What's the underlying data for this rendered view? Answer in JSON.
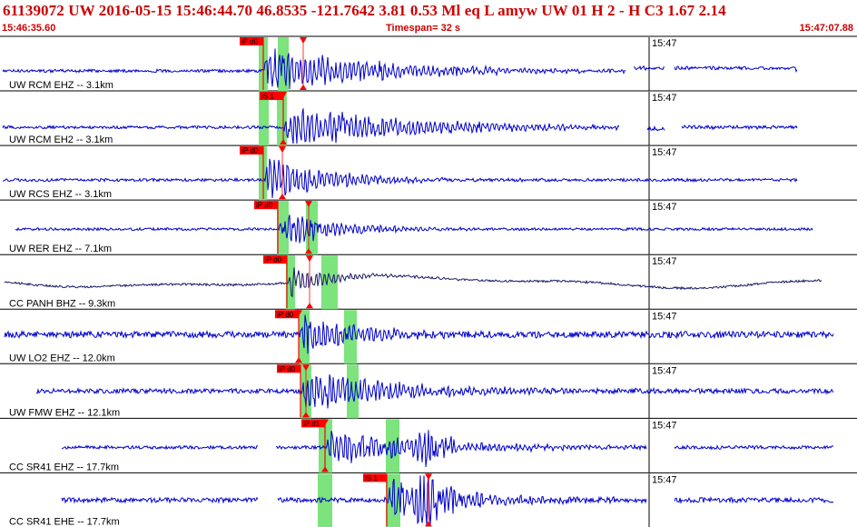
{
  "header": {
    "title": "61139072 UW 2016-05-15 15:46:44.70   46.8535 -121.7642   3.81  0.53 Ml  eq  L amyw     UW 01  H   2  -  H C3    1.67  2.14",
    "start_time": "15:46:35.60",
    "timespan": "Timespan=  32 s",
    "end_time": "15:47:07.88"
  },
  "colors": {
    "header_text": "#cc0000",
    "trace_blue": "#0000cc",
    "trace_dark": "#1a1a66",
    "pick_red": "#ff0000",
    "window_green": "#7de37d",
    "separator": "#000000"
  },
  "minute_label": "15:47",
  "channels": [
    {
      "label": "UW RCM EHZ -- 3.1km",
      "pick": "iP d0",
      "color": "blue"
    },
    {
      "label": "UW RCM EH2 -- 3.1km",
      "pick": "iS 1",
      "color": "blue"
    },
    {
      "label": "UW RCS EHZ -- 3.1km",
      "pick": "iP d0",
      "color": "blue"
    },
    {
      "label": "UW RER EHZ -- 7.1km",
      "pick": "iP d0",
      "color": "blue"
    },
    {
      "label": "CC PANH BHZ -- 9.3km",
      "pick": "iP d0",
      "color": "dark"
    },
    {
      "label": "UW LO2 EHZ -- 12.0km",
      "pick": "iP d0",
      "color": "blue"
    },
    {
      "label": "UW FMW EHZ -- 12.1km",
      "pick": "iP d0",
      "color": "blue"
    },
    {
      "label": "CC SR41 EHZ -- 17.7km",
      "pick": "iP d1",
      "color": "blue"
    },
    {
      "label": "CC SR41 EHE -- 17.7km",
      "pick": "iS 1",
      "color": "blue"
    }
  ]
}
